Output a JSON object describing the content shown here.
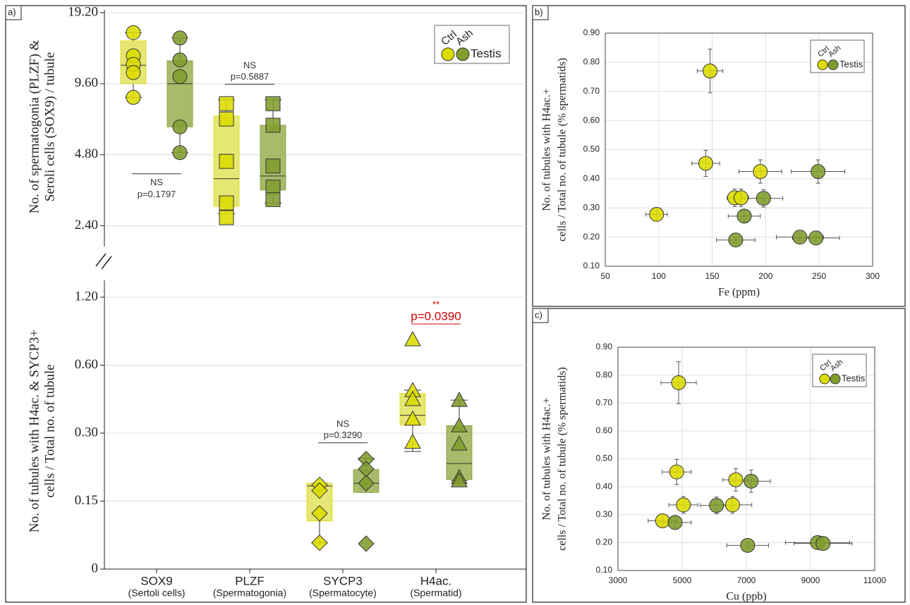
{
  "chart_data": [
    {
      "type": "box",
      "panel_label": "a)",
      "categories": [
        "SOX9",
        "PLZF",
        "SYCP3",
        "H4ac."
      ],
      "category_notes": [
        "(Sertoli cells)",
        "(Spermatogonia)",
        "(Spermatocyte)",
        "(Spermatid)"
      ],
      "category_axis": [
        "y",
        "y",
        "y2",
        "y2"
      ],
      "markers": [
        "circle",
        "square",
        "diamond",
        "triangle"
      ],
      "ylabel": [
        "No. of spermatogonia (PLZF) &",
        "Seroli cells (SOX9) / tubule"
      ],
      "yscale": "log",
      "log_base": 2,
      "ylim": [
        2.1,
        19.2
      ],
      "yticks": [
        {
          "value": 2.4,
          "label": "2.40"
        },
        {
          "value": 4.8,
          "label": "4.80"
        },
        {
          "value": 9.6,
          "label": "9.60"
        },
        {
          "value": 19.2,
          "label": "19.20"
        }
      ],
      "y2label": [
        "No. of tubules with H4ac. & SYCP3+",
        "cells / Total no. of tubule"
      ],
      "y2scale": "symlog",
      "y2_linthresh": 0.15,
      "y2lim": [
        0,
        1.2
      ],
      "y2ticks": [
        0,
        {
          "value": 0.15,
          "label": "0.15"
        },
        {
          "value": 0.3,
          "label": "0.30"
        },
        {
          "value": 0.6,
          "label": "0.60"
        },
        {
          "value": 1.2,
          "label": "1.20"
        }
      ],
      "grid": true,
      "legend": "upper right",
      "legend_label": "Testis",
      "series": [
        {
          "name": "Ctrl",
          "color": "#dcdc00",
          "box_color": "#e6e674",
          "boxes": [
            {
              "points": [
                15.8,
                12.6,
                11.6,
                10.7,
                8.4
              ],
              "whislo": 8.4,
              "q1": 9.6,
              "median": 11.5,
              "q3": 14.6,
              "whishi": 15.8
            },
            {
              "points": [
                7.9,
                6.8,
                4.5,
                3.0,
                2.6
              ],
              "whislo": 2.7,
              "q1": 2.9,
              "median": 3.8,
              "q3": 7.0,
              "whishi": 8.2
            },
            {
              "points": [
                0.177,
                0.167,
                0.123,
                0.058
              ],
              "whislo": 0.058,
              "q1": 0.106,
              "median": 0.175,
              "q3": 0.18,
              "whishi": 0.18
            },
            {
              "points": [
                0.78,
                0.464,
                0.424,
                0.347,
                0.274
              ],
              "whislo": 0.249,
              "q1": 0.326,
              "median": 0.36,
              "q3": 0.45,
              "whishi": 0.465
            }
          ]
        },
        {
          "name": "Ash",
          "color": "#7f9c2c",
          "box_color": "#a9bb6b",
          "boxes": [
            {
              "points": [
                15.0,
                12.1,
                10.3,
                6.3,
                4.9
              ],
              "whislo": 4.9,
              "q1": 6.3,
              "median": 9.6,
              "q3": 12.0,
              "whishi": 15.0
            },
            {
              "points": [
                7.9,
                6.4,
                4.3,
                3.5,
                3.1
              ],
              "whislo": 3.0,
              "q1": 3.4,
              "median": 3.9,
              "q3": 6.4,
              "whishi": 8.2
            },
            {
              "points": [
                0.23,
                0.208,
                0.18,
                0.056
              ],
              "whislo": 0.164,
              "q1": 0.164,
              "median": 0.18,
              "q3": 0.207,
              "whishi": 0.232
            },
            {
              "points": [
                0.42,
                0.324,
                0.269,
                0.191,
                0.185
              ],
              "whislo": 0.185,
              "q1": 0.187,
              "median": 0.22,
              "q3": 0.324,
              "whishi": 0.42
            }
          ]
        }
      ],
      "significance": [
        {
          "label": "NS",
          "text": "p=0.1797",
          "position": "below"
        },
        {
          "label": "NS",
          "text": "p=0.5887",
          "position": "above"
        },
        {
          "label": "NS",
          "text": "p=0.3290",
          "position": "above"
        },
        {
          "label": "**",
          "text": "p=0.0390",
          "position": "above",
          "color": "#d40000"
        }
      ]
    },
    {
      "type": "scatter",
      "panel_label": "b)",
      "xlabel": "Fe (ppm)",
      "ylabel": [
        "No. of tubules with H4ac.+",
        "cells / Total no. of tubule (% spermatids)"
      ],
      "xlim": [
        50,
        300
      ],
      "xticks": [
        50,
        100,
        150,
        200,
        250,
        300
      ],
      "ylim": [
        0.1,
        0.9
      ],
      "yticks": [
        {
          "value": 0.1,
          "label": "0.10"
        },
        {
          "value": 0.2,
          "label": "0.20"
        },
        {
          "value": 0.3,
          "label": "0.30"
        },
        {
          "value": 0.4,
          "label": "0.40"
        },
        {
          "value": 0.5,
          "label": "0.50"
        },
        {
          "value": 0.6,
          "label": "0.60"
        },
        {
          "value": 0.7,
          "label": "0.70"
        },
        {
          "value": 0.8,
          "label": "0.80"
        },
        {
          "value": 0.9,
          "label": "0.90"
        }
      ],
      "grid": true,
      "legend": "upper right",
      "legend_label": "Testis",
      "series": [
        {
          "name": "Ctrl",
          "color": "#dcdc00",
          "x": [
            148,
            144,
            195,
            171,
            177,
            98
          ],
          "values": [
            0.77,
            0.453,
            0.425,
            0.335,
            0.335,
            0.278
          ],
          "xerr": [
            12,
            13,
            20,
            7,
            7,
            10
          ],
          "yerr": [
            0.075,
            0.045,
            0.04,
            0.03,
            0.03,
            0.02
          ]
        },
        {
          "name": "Ash",
          "color": "#7f9c2c",
          "x": [
            249,
            198,
            180,
            172,
            232,
            247
          ],
          "values": [
            0.425,
            0.333,
            0.272,
            0.19,
            0.2,
            0.197
          ],
          "xerr": [
            25,
            18,
            15,
            18,
            22,
            22
          ],
          "yerr": [
            0.04,
            0.03,
            0.02,
            0.01,
            0.01,
            0.01
          ]
        }
      ]
    },
    {
      "type": "scatter",
      "panel_label": "c)",
      "xlabel": "Cu (ppb)",
      "ylabel": [
        "No. of tubules with H4ac.+",
        "cells / Total no. of tubule (% spermatids)"
      ],
      "xlim": [
        3000,
        11000
      ],
      "xticks": [
        3000,
        5000,
        7000,
        9000,
        11000
      ],
      "ylim": [
        0.1,
        0.9
      ],
      "yticks": [
        {
          "value": 0.1,
          "label": "0.10"
        },
        {
          "value": 0.2,
          "label": "0.20"
        },
        {
          "value": 0.3,
          "label": "0.30"
        },
        {
          "value": 0.4,
          "label": "0.40"
        },
        {
          "value": 0.5,
          "label": "0.50"
        },
        {
          "value": 0.6,
          "label": "0.60"
        },
        {
          "value": 0.7,
          "label": "0.70"
        },
        {
          "value": 0.8,
          "label": "0.80"
        },
        {
          "value": 0.9,
          "label": "0.90"
        }
      ],
      "grid": true,
      "legend": "upper right",
      "legend_label": "Testis",
      "series": [
        {
          "name": "Ctrl",
          "color": "#dcdc00",
          "x": [
            4890,
            4830,
            6670,
            5040,
            6570,
            4390
          ],
          "values": [
            0.773,
            0.453,
            0.425,
            0.335,
            0.335,
            0.278
          ],
          "xerr": [
            550,
            450,
            400,
            450,
            600,
            450
          ],
          "yerr": [
            0.075,
            0.045,
            0.04,
            0.03,
            0.03,
            0.02
          ]
        },
        {
          "name": "Ash",
          "color": "#7f9c2c",
          "x": [
            7150,
            6070,
            4780,
            7040,
            9220,
            9390
          ],
          "values": [
            0.42,
            0.333,
            0.272,
            0.19,
            0.2,
            0.197
          ],
          "xerr": [
            600,
            500,
            500,
            650,
            1000,
            900
          ],
          "yerr": [
            0.04,
            0.03,
            0.02,
            0.01,
            0.01,
            0.01
          ]
        }
      ]
    }
  ]
}
